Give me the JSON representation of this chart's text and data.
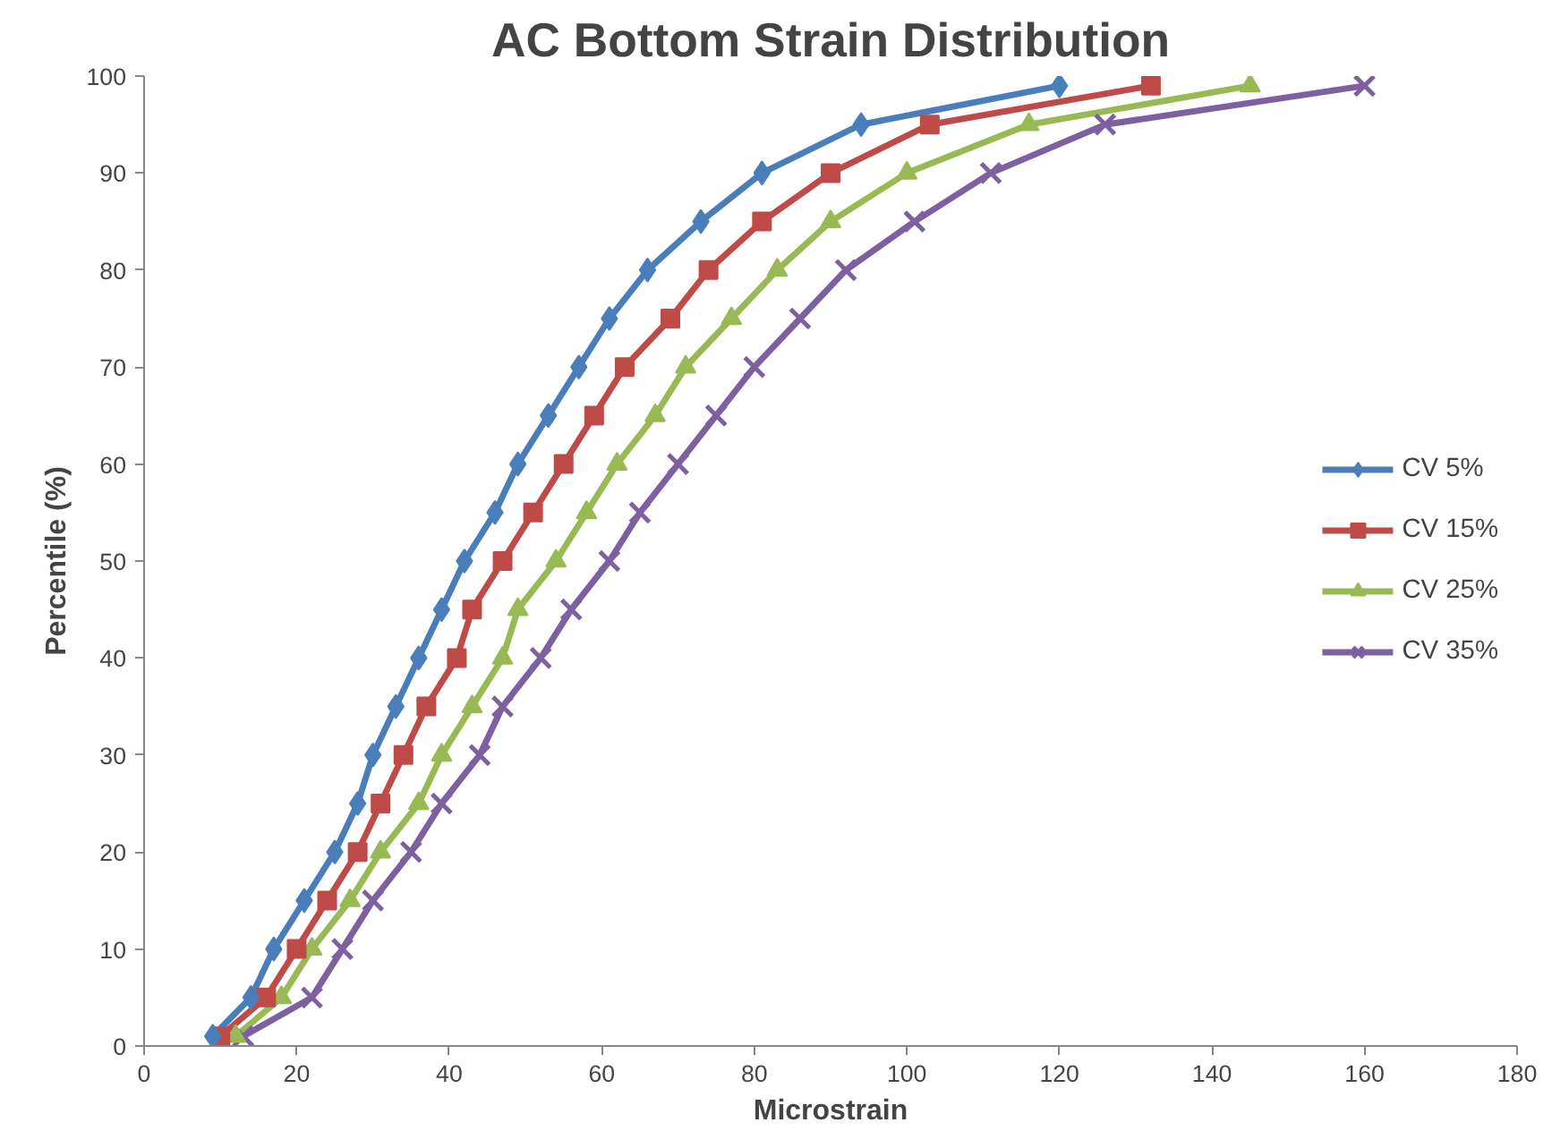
{
  "chart_data": {
    "type": "line",
    "title": "AC Bottom Strain Distribution",
    "xlabel": "Microstrain",
    "ylabel": "Percentile (%)",
    "xlim": [
      0,
      180
    ],
    "xticks": [
      0,
      20,
      40,
      60,
      80,
      100,
      120,
      140,
      160,
      180
    ],
    "ylim": [
      0,
      100
    ],
    "yticks": [
      0,
      10,
      20,
      30,
      40,
      50,
      60,
      70,
      80,
      90,
      100
    ],
    "grid": false,
    "legend": "right",
    "series": [
      {
        "name": "CV 5%",
        "color": "#4a7ebb",
        "marker": "diamond",
        "x": [
          9,
          14,
          17,
          21,
          25,
          28,
          30,
          33,
          36,
          39,
          42,
          46,
          49,
          53,
          57,
          61,
          66,
          73,
          81,
          94,
          120
        ],
        "values": [
          1,
          5,
          10,
          15,
          20,
          25,
          30,
          35,
          40,
          45,
          50,
          55,
          60,
          65,
          70,
          75,
          80,
          85,
          90,
          95,
          99
        ]
      },
      {
        "name": "CV 15%",
        "color": "#be4b48",
        "marker": "square",
        "x": [
          10,
          16,
          20,
          24,
          28,
          31,
          34,
          37,
          41,
          43,
          47,
          51,
          55,
          59,
          63,
          69,
          74,
          81,
          90,
          103,
          132
        ],
        "values": [
          1,
          5,
          10,
          15,
          20,
          25,
          30,
          35,
          40,
          45,
          50,
          55,
          60,
          65,
          70,
          75,
          80,
          85,
          90,
          95,
          99
        ]
      },
      {
        "name": "CV 25%",
        "color": "#98b954",
        "marker": "triangle",
        "x": [
          12,
          18,
          22,
          27,
          31,
          36,
          39,
          43,
          47,
          49,
          54,
          58,
          62,
          67,
          71,
          77,
          83,
          90,
          100,
          116,
          145
        ],
        "values": [
          1,
          5,
          10,
          15,
          20,
          25,
          30,
          35,
          40,
          45,
          50,
          55,
          60,
          65,
          70,
          75,
          80,
          85,
          90,
          95,
          99
        ]
      },
      {
        "name": "CV 35%",
        "color": "#7d60a0",
        "marker": "cross",
        "x": [
          13,
          22,
          26,
          30,
          35,
          39,
          44,
          47,
          52,
          56,
          61,
          65,
          70,
          75,
          80,
          86,
          92,
          101,
          111,
          126,
          160
        ],
        "values": [
          1,
          5,
          10,
          15,
          20,
          25,
          30,
          35,
          40,
          45,
          50,
          55,
          60,
          65,
          70,
          75,
          80,
          85,
          90,
          95,
          99
        ]
      }
    ]
  }
}
